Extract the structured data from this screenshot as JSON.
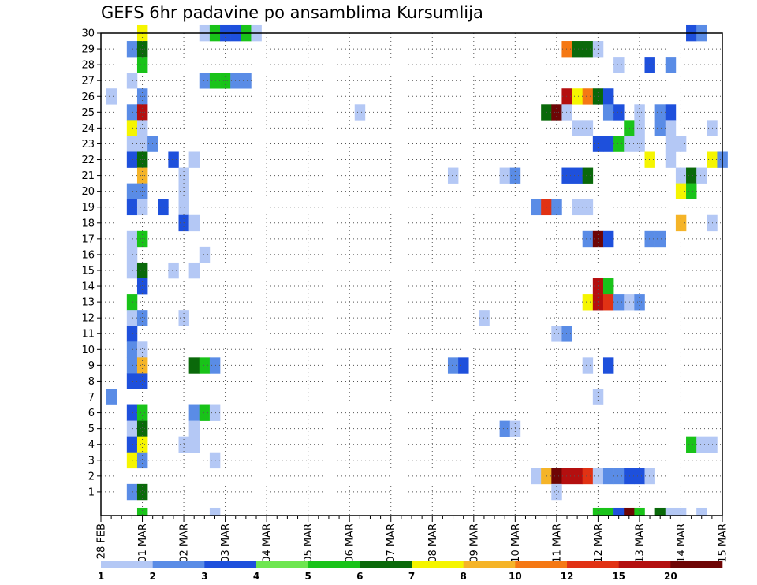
{
  "chart_data": {
    "type": "heatmap",
    "title": "GEFS 6hr padavine po ansamblima Kursumlija",
    "xlabel": "",
    "ylabel": "",
    "x_ticks": [
      "28 FEB",
      "01 MAR",
      "02 MAR",
      "03 MAR",
      "04 MAR",
      "05 MAR",
      "06 MAR",
      "07 MAR",
      "08 MAR",
      "09 MAR",
      "10 MAR",
      "11 MAR",
      "12 MAR",
      "13 MAR",
      "14 MAR",
      "15 MAR"
    ],
    "y_ticks": [
      "1",
      "2",
      "3",
      "4",
      "5",
      "6",
      "7",
      "8",
      "9",
      "10",
      "11",
      "12",
      "13",
      "14",
      "15",
      "16",
      "17",
      "18",
      "19",
      "20",
      "21",
      "22",
      "23",
      "24",
      "25",
      "26",
      "27",
      "28",
      "29",
      "30"
    ],
    "x_unit": "6h steps from 28 FEB 00 UTC",
    "y_range": [
      0,
      30
    ],
    "x_range": [
      0,
      60
    ],
    "grid": true,
    "legend_position": "bottom",
    "legend": {
      "levels": [
        "1",
        "2",
        "3",
        "4",
        "5",
        "6",
        "7",
        "8",
        "10",
        "12",
        "15",
        "20"
      ],
      "colors": [
        "#b4c8f5",
        "#5a8ce6",
        "#1e50dc",
        "#6ee650",
        "#19c319",
        "#0a690a",
        "#f5f500",
        "#f5b428",
        "#f57814",
        "#e13214",
        "#b40f0f",
        "#6e0505"
      ]
    },
    "cells": [
      [
        4,
        30,
        7
      ],
      [
        10,
        30,
        1
      ],
      [
        11,
        30,
        5
      ],
      [
        12,
        30,
        3
      ],
      [
        13,
        30,
        3
      ],
      [
        14,
        30,
        5
      ],
      [
        15,
        30,
        1
      ],
      [
        57,
        30,
        3
      ],
      [
        58,
        30,
        2
      ],
      [
        3,
        29,
        2
      ],
      [
        4,
        29,
        6
      ],
      [
        45,
        29,
        9
      ],
      [
        46,
        29,
        6
      ],
      [
        47,
        29,
        6
      ],
      [
        48,
        29,
        1
      ],
      [
        4,
        28,
        5
      ],
      [
        50,
        28,
        1
      ],
      [
        53,
        28,
        3
      ],
      [
        55,
        28,
        2
      ],
      [
        3,
        27,
        1
      ],
      [
        10,
        27,
        2
      ],
      [
        11,
        27,
        5
      ],
      [
        12,
        27,
        5
      ],
      [
        13,
        27,
        2
      ],
      [
        14,
        27,
        2
      ],
      [
        1,
        26,
        1
      ],
      [
        4,
        26,
        2
      ],
      [
        45,
        26,
        11
      ],
      [
        46,
        26,
        7
      ],
      [
        47,
        26,
        9
      ],
      [
        48,
        26,
        6
      ],
      [
        49,
        26,
        3
      ],
      [
        3,
        25,
        2
      ],
      [
        4,
        25,
        11
      ],
      [
        25,
        25,
        1
      ],
      [
        43,
        25,
        6
      ],
      [
        44,
        25,
        12
      ],
      [
        45,
        25,
        1
      ],
      [
        49,
        25,
        2
      ],
      [
        50,
        25,
        3
      ],
      [
        52,
        25,
        1
      ],
      [
        54,
        25,
        2
      ],
      [
        55,
        25,
        3
      ],
      [
        3,
        24,
        7
      ],
      [
        4,
        24,
        1
      ],
      [
        46,
        24,
        1
      ],
      [
        47,
        24,
        1
      ],
      [
        51,
        24,
        5
      ],
      [
        52,
        24,
        1
      ],
      [
        54,
        24,
        2
      ],
      [
        55,
        24,
        1
      ],
      [
        59,
        24,
        1
      ],
      [
        3,
        23,
        1
      ],
      [
        4,
        23,
        1
      ],
      [
        5,
        23,
        2
      ],
      [
        48,
        23,
        3
      ],
      [
        49,
        23,
        3
      ],
      [
        50,
        23,
        5
      ],
      [
        51,
        23,
        1
      ],
      [
        52,
        23,
        1
      ],
      [
        55,
        23,
        1
      ],
      [
        56,
        23,
        1
      ],
      [
        3,
        22,
        3
      ],
      [
        4,
        22,
        6
      ],
      [
        7,
        22,
        3
      ],
      [
        9,
        22,
        1
      ],
      [
        53,
        22,
        7
      ],
      [
        55,
        22,
        1
      ],
      [
        59,
        22,
        7
      ],
      [
        60,
        22,
        2
      ],
      [
        4,
        21,
        8
      ],
      [
        8,
        21,
        1
      ],
      [
        34,
        21,
        1
      ],
      [
        39,
        21,
        1
      ],
      [
        40,
        21,
        2
      ],
      [
        45,
        21,
        3
      ],
      [
        46,
        21,
        3
      ],
      [
        47,
        21,
        6
      ],
      [
        56,
        21,
        1
      ],
      [
        57,
        21,
        6
      ],
      [
        58,
        21,
        1
      ],
      [
        3,
        20,
        2
      ],
      [
        4,
        20,
        2
      ],
      [
        8,
        20,
        1
      ],
      [
        56,
        20,
        7
      ],
      [
        57,
        20,
        5
      ],
      [
        3,
        19,
        3
      ],
      [
        4,
        19,
        1
      ],
      [
        6,
        19,
        3
      ],
      [
        8,
        19,
        1
      ],
      [
        42,
        19,
        2
      ],
      [
        43,
        19,
        10
      ],
      [
        44,
        19,
        2
      ],
      [
        46,
        19,
        1
      ],
      [
        47,
        19,
        1
      ],
      [
        8,
        18,
        3
      ],
      [
        9,
        18,
        1
      ],
      [
        56,
        18,
        8
      ],
      [
        59,
        18,
        1
      ],
      [
        3,
        17,
        1
      ],
      [
        4,
        17,
        5
      ],
      [
        47,
        17,
        2
      ],
      [
        48,
        17,
        12
      ],
      [
        49,
        17,
        3
      ],
      [
        53,
        17,
        2
      ],
      [
        54,
        17,
        2
      ],
      [
        3,
        16,
        1
      ],
      [
        10,
        16,
        1
      ],
      [
        3,
        15,
        1
      ],
      [
        4,
        15,
        6
      ],
      [
        7,
        15,
        1
      ],
      [
        9,
        15,
        1
      ],
      [
        4,
        14,
        3
      ],
      [
        48,
        14,
        11
      ],
      [
        49,
        14,
        5
      ],
      [
        3,
        13,
        5
      ],
      [
        47,
        13,
        7
      ],
      [
        48,
        13,
        11
      ],
      [
        49,
        13,
        10
      ],
      [
        50,
        13,
        2
      ],
      [
        51,
        13,
        1
      ],
      [
        52,
        13,
        2
      ],
      [
        3,
        12,
        1
      ],
      [
        4,
        12,
        2
      ],
      [
        8,
        12,
        1
      ],
      [
        37,
        12,
        1
      ],
      [
        3,
        11,
        3
      ],
      [
        44,
        11,
        1
      ],
      [
        45,
        11,
        2
      ],
      [
        3,
        10,
        2
      ],
      [
        4,
        10,
        1
      ],
      [
        3,
        9,
        2
      ],
      [
        4,
        9,
        8
      ],
      [
        9,
        9,
        6
      ],
      [
        10,
        9,
        5
      ],
      [
        11,
        9,
        2
      ],
      [
        34,
        9,
        2
      ],
      [
        35,
        9,
        3
      ],
      [
        47,
        9,
        1
      ],
      [
        49,
        9,
        3
      ],
      [
        3,
        8,
        3
      ],
      [
        4,
        8,
        3
      ],
      [
        1,
        7,
        2
      ],
      [
        48,
        7,
        1
      ],
      [
        3,
        6,
        3
      ],
      [
        4,
        6,
        5
      ],
      [
        9,
        6,
        2
      ],
      [
        10,
        6,
        5
      ],
      [
        11,
        6,
        1
      ],
      [
        3,
        5,
        1
      ],
      [
        4,
        5,
        6
      ],
      [
        9,
        5,
        1
      ],
      [
        39,
        5,
        2
      ],
      [
        40,
        5,
        1
      ],
      [
        3,
        4,
        3
      ],
      [
        4,
        4,
        7
      ],
      [
        8,
        4,
        1
      ],
      [
        9,
        4,
        1
      ],
      [
        57,
        4,
        5
      ],
      [
        58,
        4,
        1
      ],
      [
        59,
        4,
        1
      ],
      [
        3,
        3,
        7
      ],
      [
        4,
        3,
        2
      ],
      [
        11,
        3,
        1
      ],
      [
        42,
        2,
        1
      ],
      [
        43,
        2,
        8
      ],
      [
        44,
        2,
        12
      ],
      [
        45,
        2,
        11
      ],
      [
        46,
        2,
        11
      ],
      [
        47,
        2,
        10
      ],
      [
        48,
        2,
        1
      ],
      [
        49,
        2,
        2
      ],
      [
        50,
        2,
        2
      ],
      [
        51,
        2,
        3
      ],
      [
        52,
        2,
        3
      ],
      [
        53,
        2,
        1
      ],
      [
        3,
        1,
        2
      ],
      [
        4,
        1,
        6
      ],
      [
        44,
        1,
        1
      ],
      [
        4,
        0,
        5
      ],
      [
        11,
        0,
        1
      ],
      [
        48,
        0,
        5
      ],
      [
        49,
        0,
        5
      ],
      [
        50,
        0,
        3
      ],
      [
        51,
        0,
        12
      ],
      [
        52,
        0,
        5
      ],
      [
        54,
        0,
        6
      ],
      [
        55,
        0,
        1
      ],
      [
        56,
        0,
        1
      ],
      [
        58,
        0,
        1
      ]
    ]
  }
}
